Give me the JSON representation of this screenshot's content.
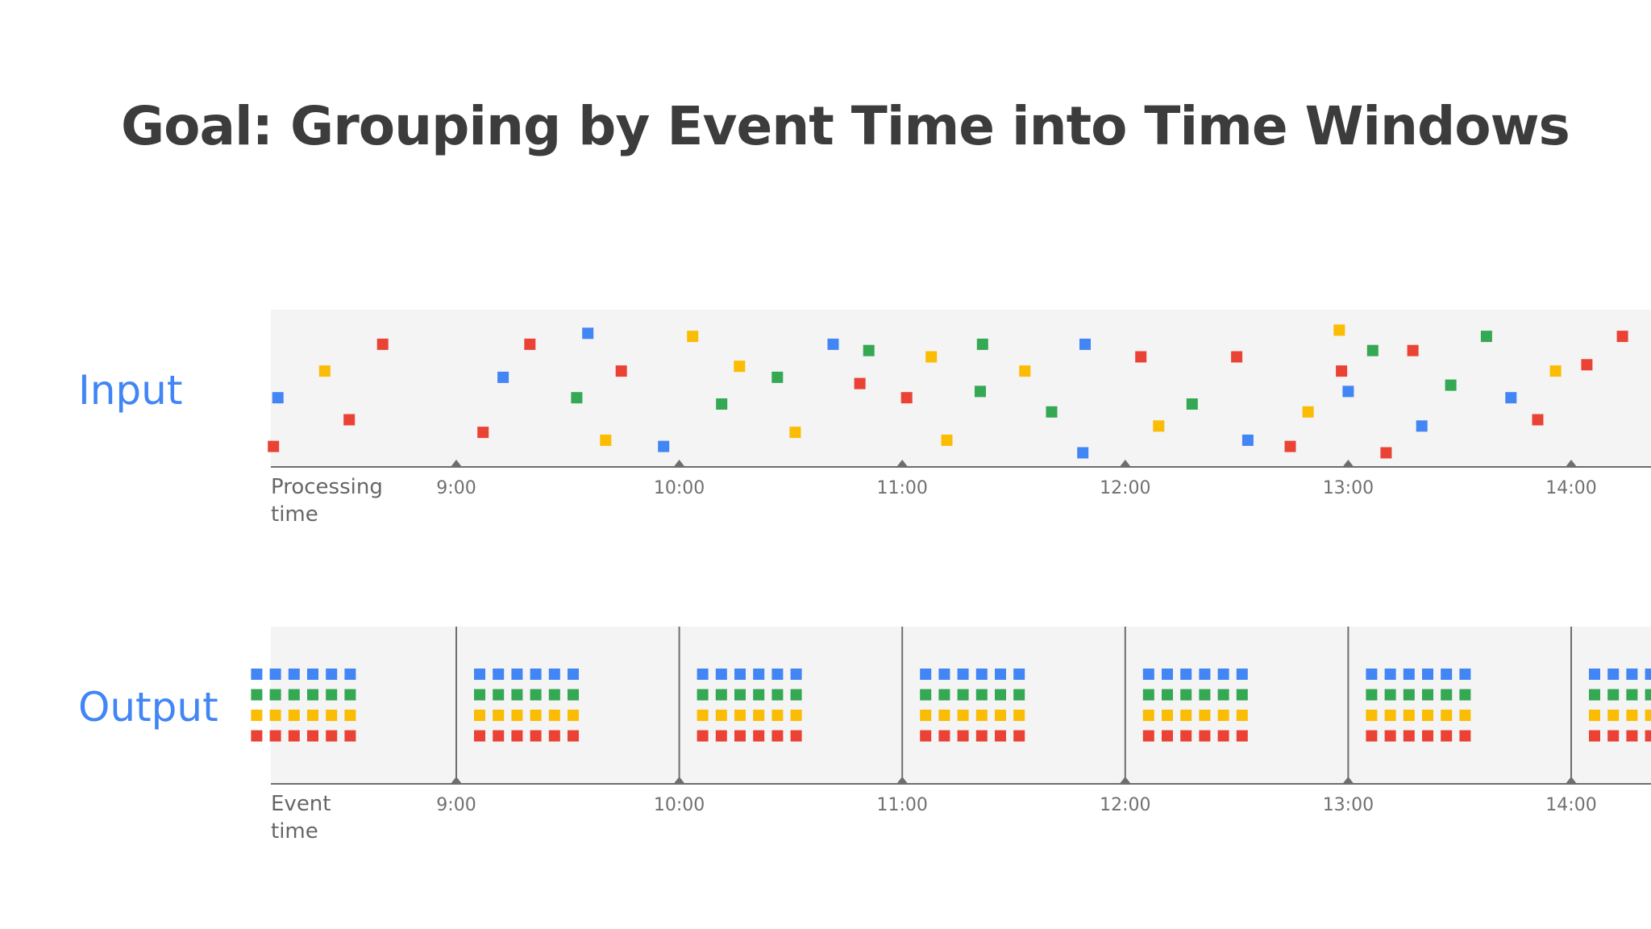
{
  "title": "Goal: Grouping by Event Time into Time Windows",
  "colors": {
    "background": "#ffffff",
    "panel": "#f5f4f4",
    "axis": "#6e6e6e",
    "title": "#3c3c3c",
    "row_label": "#4285f4",
    "blue": "#4285f4",
    "red": "#ea4335",
    "yellow": "#fbbc04",
    "green": "#34a853"
  },
  "input": {
    "label": "Input",
    "axis_title_line1": "Processing",
    "axis_title_line2": "time",
    "ticks": [
      "9:00",
      "10:00",
      "11:00",
      "12:00",
      "13:00",
      "14:00"
    ]
  },
  "output": {
    "label": "Output",
    "axis_title_line1": "Event",
    "axis_title_line2": "time",
    "ticks": [
      "9:00",
      "10:00",
      "11:00",
      "12:00",
      "13:00",
      "14:00"
    ],
    "window_rows": [
      "blue",
      "green",
      "yellow",
      "red"
    ],
    "squares_per_row": 6
  },
  "chart_data": {
    "type": "scatter",
    "x_unit": "processing time (h)",
    "y_unit": "relative height (0 = axis, 1 = top)",
    "points": [
      {
        "x": 8.18,
        "y": 0.13,
        "color": "red"
      },
      {
        "x": 8.2,
        "y": 0.44,
        "color": "blue"
      },
      {
        "x": 8.41,
        "y": 0.61,
        "color": "yellow"
      },
      {
        "x": 8.52,
        "y": 0.3,
        "color": "red"
      },
      {
        "x": 8.67,
        "y": 0.78,
        "color": "red"
      },
      {
        "x": 9.12,
        "y": 0.22,
        "color": "red"
      },
      {
        "x": 9.21,
        "y": 0.57,
        "color": "blue"
      },
      {
        "x": 9.33,
        "y": 0.78,
        "color": "red"
      },
      {
        "x": 9.54,
        "y": 0.44,
        "color": "green"
      },
      {
        "x": 9.59,
        "y": 0.85,
        "color": "blue"
      },
      {
        "x": 9.67,
        "y": 0.17,
        "color": "yellow"
      },
      {
        "x": 9.74,
        "y": 0.61,
        "color": "red"
      },
      {
        "x": 9.93,
        "y": 0.13,
        "color": "blue"
      },
      {
        "x": 10.06,
        "y": 0.83,
        "color": "yellow"
      },
      {
        "x": 10.19,
        "y": 0.4,
        "color": "green"
      },
      {
        "x": 10.27,
        "y": 0.64,
        "color": "yellow"
      },
      {
        "x": 10.44,
        "y": 0.57,
        "color": "green"
      },
      {
        "x": 10.52,
        "y": 0.22,
        "color": "yellow"
      },
      {
        "x": 10.69,
        "y": 0.78,
        "color": "blue"
      },
      {
        "x": 10.81,
        "y": 0.53,
        "color": "red"
      },
      {
        "x": 10.85,
        "y": 0.74,
        "color": "green"
      },
      {
        "x": 11.02,
        "y": 0.44,
        "color": "red"
      },
      {
        "x": 11.13,
        "y": 0.7,
        "color": "yellow"
      },
      {
        "x": 11.2,
        "y": 0.17,
        "color": "yellow"
      },
      {
        "x": 11.35,
        "y": 0.48,
        "color": "green"
      },
      {
        "x": 11.36,
        "y": 0.78,
        "color": "green"
      },
      {
        "x": 11.55,
        "y": 0.61,
        "color": "yellow"
      },
      {
        "x": 11.67,
        "y": 0.35,
        "color": "green"
      },
      {
        "x": 11.81,
        "y": 0.09,
        "color": "blue"
      },
      {
        "x": 11.82,
        "y": 0.78,
        "color": "blue"
      },
      {
        "x": 12.07,
        "y": 0.7,
        "color": "red"
      },
      {
        "x": 12.15,
        "y": 0.26,
        "color": "yellow"
      },
      {
        "x": 12.3,
        "y": 0.4,
        "color": "green"
      },
      {
        "x": 12.5,
        "y": 0.7,
        "color": "red"
      },
      {
        "x": 12.55,
        "y": 0.17,
        "color": "blue"
      },
      {
        "x": 12.74,
        "y": 0.13,
        "color": "red"
      },
      {
        "x": 12.82,
        "y": 0.35,
        "color": "yellow"
      },
      {
        "x": 12.97,
        "y": 0.61,
        "color": "red"
      },
      {
        "x": 12.96,
        "y": 0.87,
        "color": "yellow"
      },
      {
        "x": 13.0,
        "y": 0.48,
        "color": "blue"
      },
      {
        "x": 13.11,
        "y": 0.74,
        "color": "green"
      },
      {
        "x": 13.17,
        "y": 0.09,
        "color": "red"
      },
      {
        "x": 13.29,
        "y": 0.74,
        "color": "red"
      },
      {
        "x": 13.33,
        "y": 0.26,
        "color": "blue"
      },
      {
        "x": 13.46,
        "y": 0.52,
        "color": "green"
      },
      {
        "x": 13.62,
        "y": 0.83,
        "color": "green"
      },
      {
        "x": 13.73,
        "y": 0.44,
        "color": "blue"
      },
      {
        "x": 13.85,
        "y": 0.3,
        "color": "red"
      },
      {
        "x": 13.93,
        "y": 0.61,
        "color": "yellow"
      },
      {
        "x": 14.07,
        "y": 0.65,
        "color": "red"
      },
      {
        "x": 14.23,
        "y": 0.83,
        "color": "red"
      }
    ],
    "windows": [
      {
        "start": "8:00",
        "end": "9:00",
        "blue": 6,
        "green": 6,
        "yellow": 6,
        "red": 6
      },
      {
        "start": "9:00",
        "end": "10:00",
        "blue": 6,
        "green": 6,
        "yellow": 6,
        "red": 6
      },
      {
        "start": "10:00",
        "end": "11:00",
        "blue": 6,
        "green": 6,
        "yellow": 6,
        "red": 6
      },
      {
        "start": "11:00",
        "end": "12:00",
        "blue": 6,
        "green": 6,
        "yellow": 6,
        "red": 6
      },
      {
        "start": "12:00",
        "end": "13:00",
        "blue": 6,
        "green": 6,
        "yellow": 6,
        "red": 6
      },
      {
        "start": "13:00",
        "end": "14:00",
        "blue": 6,
        "green": 6,
        "yellow": 6,
        "red": 6
      },
      {
        "start": "14:00",
        "end": "15:00",
        "blue": 6,
        "green": 6,
        "yellow": 6,
        "red": 6
      }
    ]
  }
}
